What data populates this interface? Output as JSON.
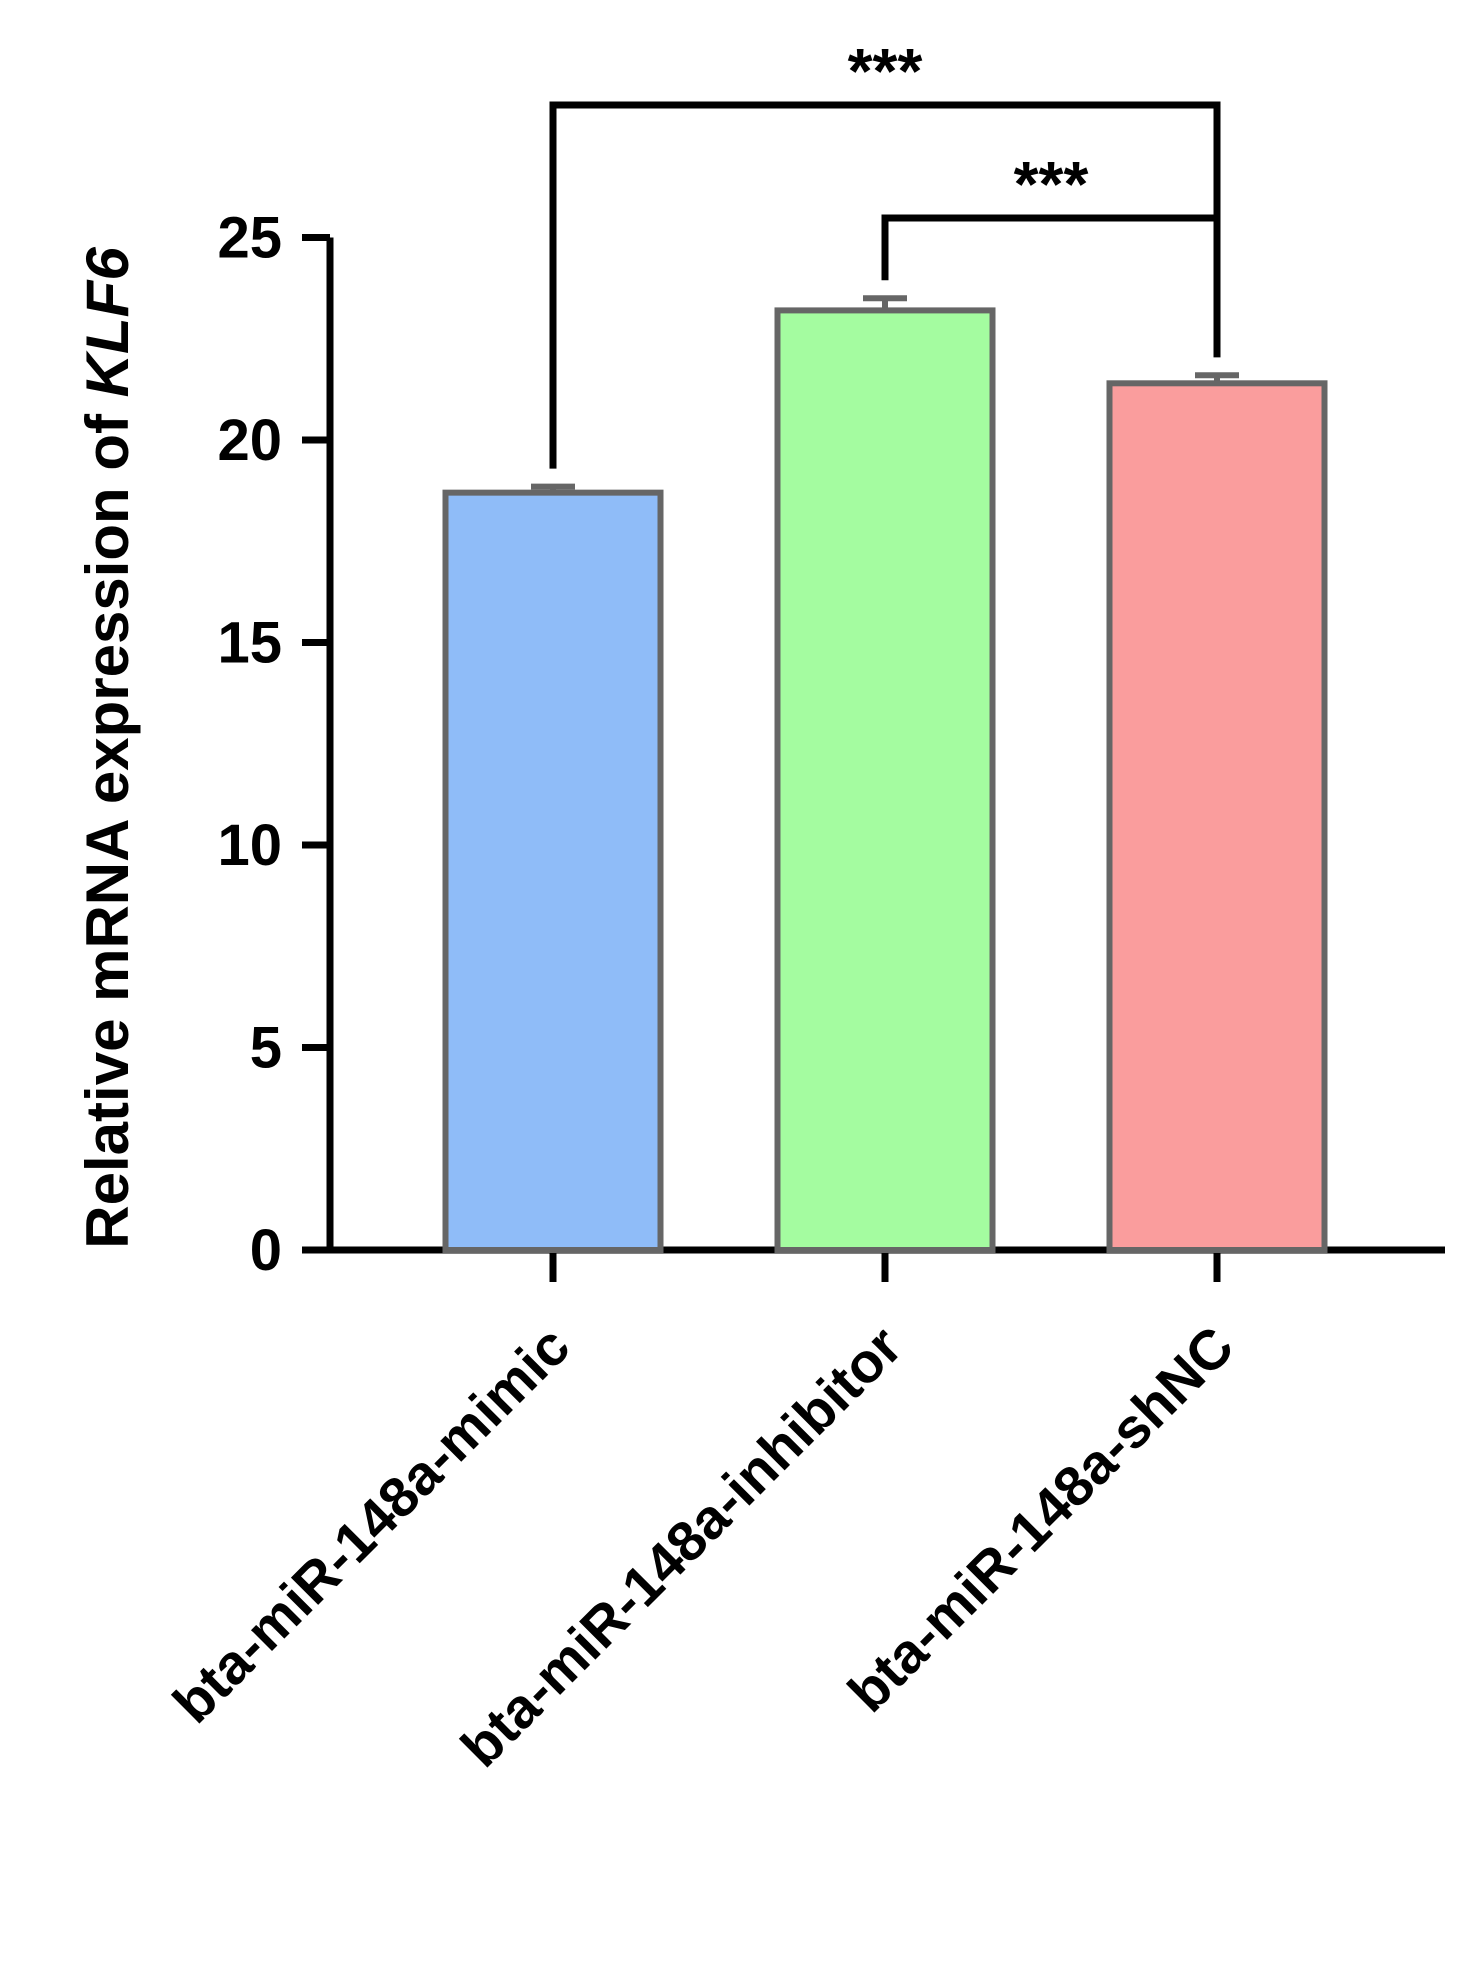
{
  "chart_data": {
    "type": "bar",
    "title": "",
    "ylabel": {
      "prefix": "Relative mRNA expression of ",
      "gene": "KLF6"
    },
    "xlabel": "",
    "ylim": [
      0,
      25
    ],
    "yticks": [
      0,
      5,
      10,
      15,
      20,
      25
    ],
    "categories": [
      "bta-miR-148a-mimic",
      "bta-miR-148a-inhibitor",
      "bta-miR-148a-shNC"
    ],
    "values": [
      18.7,
      23.2,
      21.4
    ],
    "errors": [
      0.15,
      0.3,
      0.2
    ],
    "colors": [
      "#8fbcf8",
      "#a4fca0",
      "#fa9d9d"
    ],
    "edge_color": "#666666",
    "significance": [
      {
        "from": 0,
        "to": 2,
        "label": "***"
      },
      {
        "from": 1,
        "to": 2,
        "label": "***"
      }
    ],
    "grid": false,
    "legend": "none"
  }
}
